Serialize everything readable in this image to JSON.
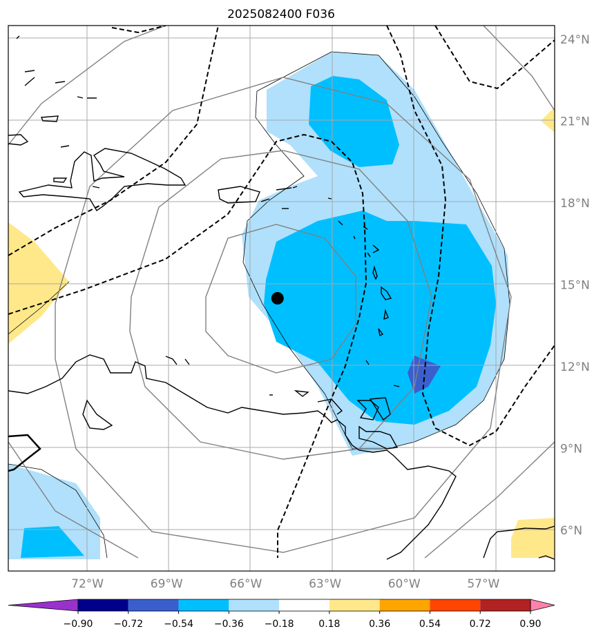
{
  "title": "2025082400 F036",
  "colors": {
    "fill_neg_018_036": "#b0e0fb",
    "fill_neg_036_054": "#00bfff",
    "fill_neg_054_072": "#3a5fcd",
    "fill_pos_018_036": "#ffe88a",
    "coast": "#000000",
    "grid": "#a9a9a9",
    "solid_contour": "#808080",
    "dashed_contour": "#000000",
    "center_marker": "#000000"
  },
  "map": {
    "lon_range": [
      -75,
      -54.3
    ],
    "lat_range": [
      4.5,
      24.5
    ],
    "lon_ticks": [
      {
        "value": -72,
        "label": "72°W"
      },
      {
        "value": -69,
        "label": "69°W"
      },
      {
        "value": -66,
        "label": "66°W"
      },
      {
        "value": -63,
        "label": "63°W"
      },
      {
        "value": -60,
        "label": "60°W"
      },
      {
        "value": -57,
        "label": "57°W"
      }
    ],
    "lat_ticks": [
      {
        "value": 24,
        "label": "24°N"
      },
      {
        "value": 21,
        "label": "21°N"
      },
      {
        "value": 18,
        "label": "18°N"
      },
      {
        "value": 15,
        "label": "15°N"
      },
      {
        "value": 12,
        "label": "12°N"
      },
      {
        "value": 9,
        "label": "9°N"
      },
      {
        "value": 6,
        "label": "6°N"
      }
    ],
    "center_marker": {
      "lon": -64.8,
      "lat": 14.5
    },
    "grid": true
  },
  "colorbar": {
    "colors": [
      "#9932cc",
      "#00008b",
      "#3a5fcd",
      "#00bfff",
      "#b0e0fb",
      "#ffffff",
      "#ffe88a",
      "#ffa500",
      "#ff4500",
      "#b22222",
      "#ff82ab",
      "#ff82ab"
    ],
    "labels": [
      "−0.90",
      "−0.72",
      "−0.54",
      "−0.36",
      "−0.18",
      "0.18",
      "0.36",
      "0.54",
      "0.72",
      "0.90"
    ],
    "extend": "both"
  }
}
